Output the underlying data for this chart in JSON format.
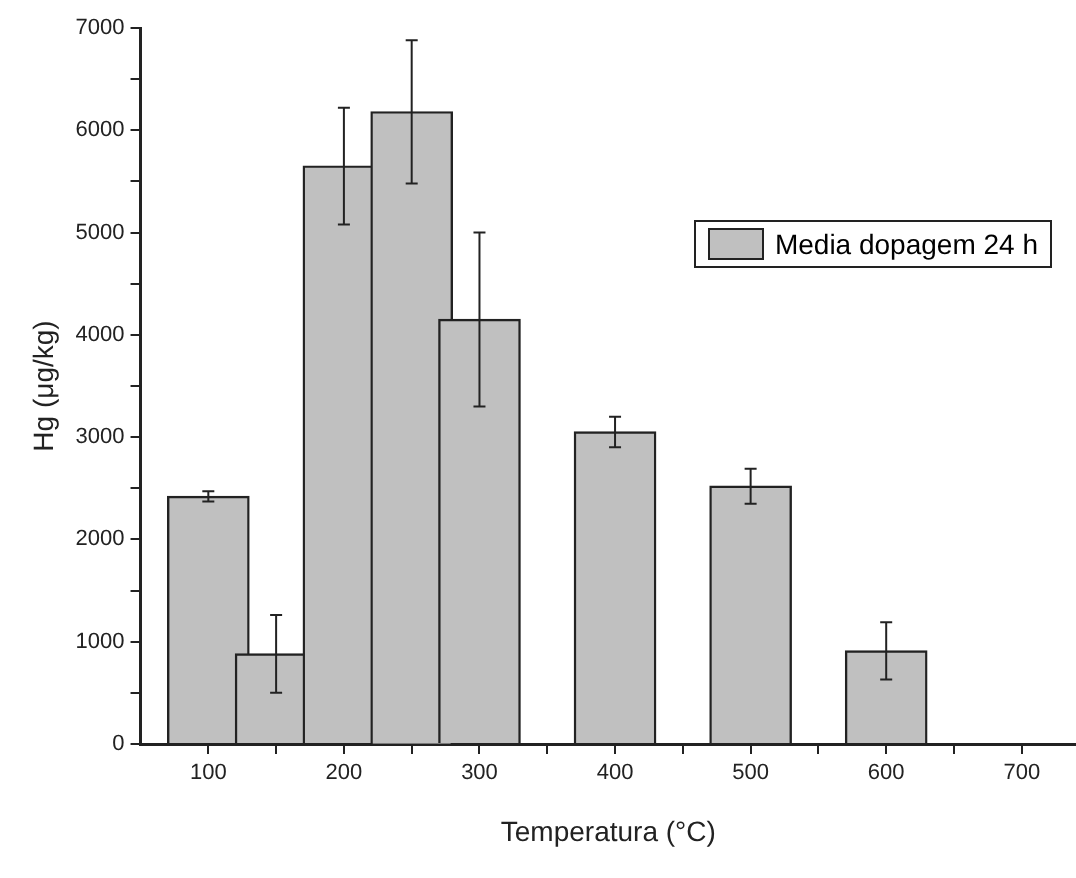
{
  "chart_data": {
    "type": "bar",
    "xlabel": "Temperatura (°C)",
    "ylabel": "Hg (μg/kg)",
    "x": [
      100,
      150,
      200,
      250,
      300,
      400,
      500,
      600
    ],
    "series": [
      {
        "name": "Media dopagem 24 h",
        "color": "#c0c0c0",
        "values": [
          2420,
          880,
          5650,
          6180,
          4150,
          3050,
          2520,
          910
        ],
        "errors": [
          50,
          380,
          570,
          700,
          850,
          150,
          170,
          280
        ]
      }
    ],
    "xlim": [
      50,
      740
    ],
    "xticks": [
      100,
      {
        "value": 150,
        "label": null
      },
      200,
      {
        "value": 250,
        "label": null
      },
      300,
      {
        "value": 350,
        "label": null
      },
      400,
      {
        "value": 450,
        "label": null
      },
      500,
      {
        "value": 550,
        "label": null
      },
      600,
      {
        "value": 650,
        "label": null
      },
      700
    ],
    "ylim": [
      0,
      7000
    ],
    "yticks": [
      0,
      {
        "value": 500,
        "label": null
      },
      1000,
      {
        "value": 1500,
        "label": null
      },
      2000,
      {
        "value": 2500,
        "label": null
      },
      3000,
      {
        "value": 3500,
        "label": null
      },
      4000,
      {
        "value": 4500,
        "label": null
      },
      5000,
      {
        "value": 5500,
        "label": null
      },
      6000,
      {
        "value": 6500,
        "label": null
      },
      7000
    ],
    "grid": false,
    "legend": "top right"
  }
}
